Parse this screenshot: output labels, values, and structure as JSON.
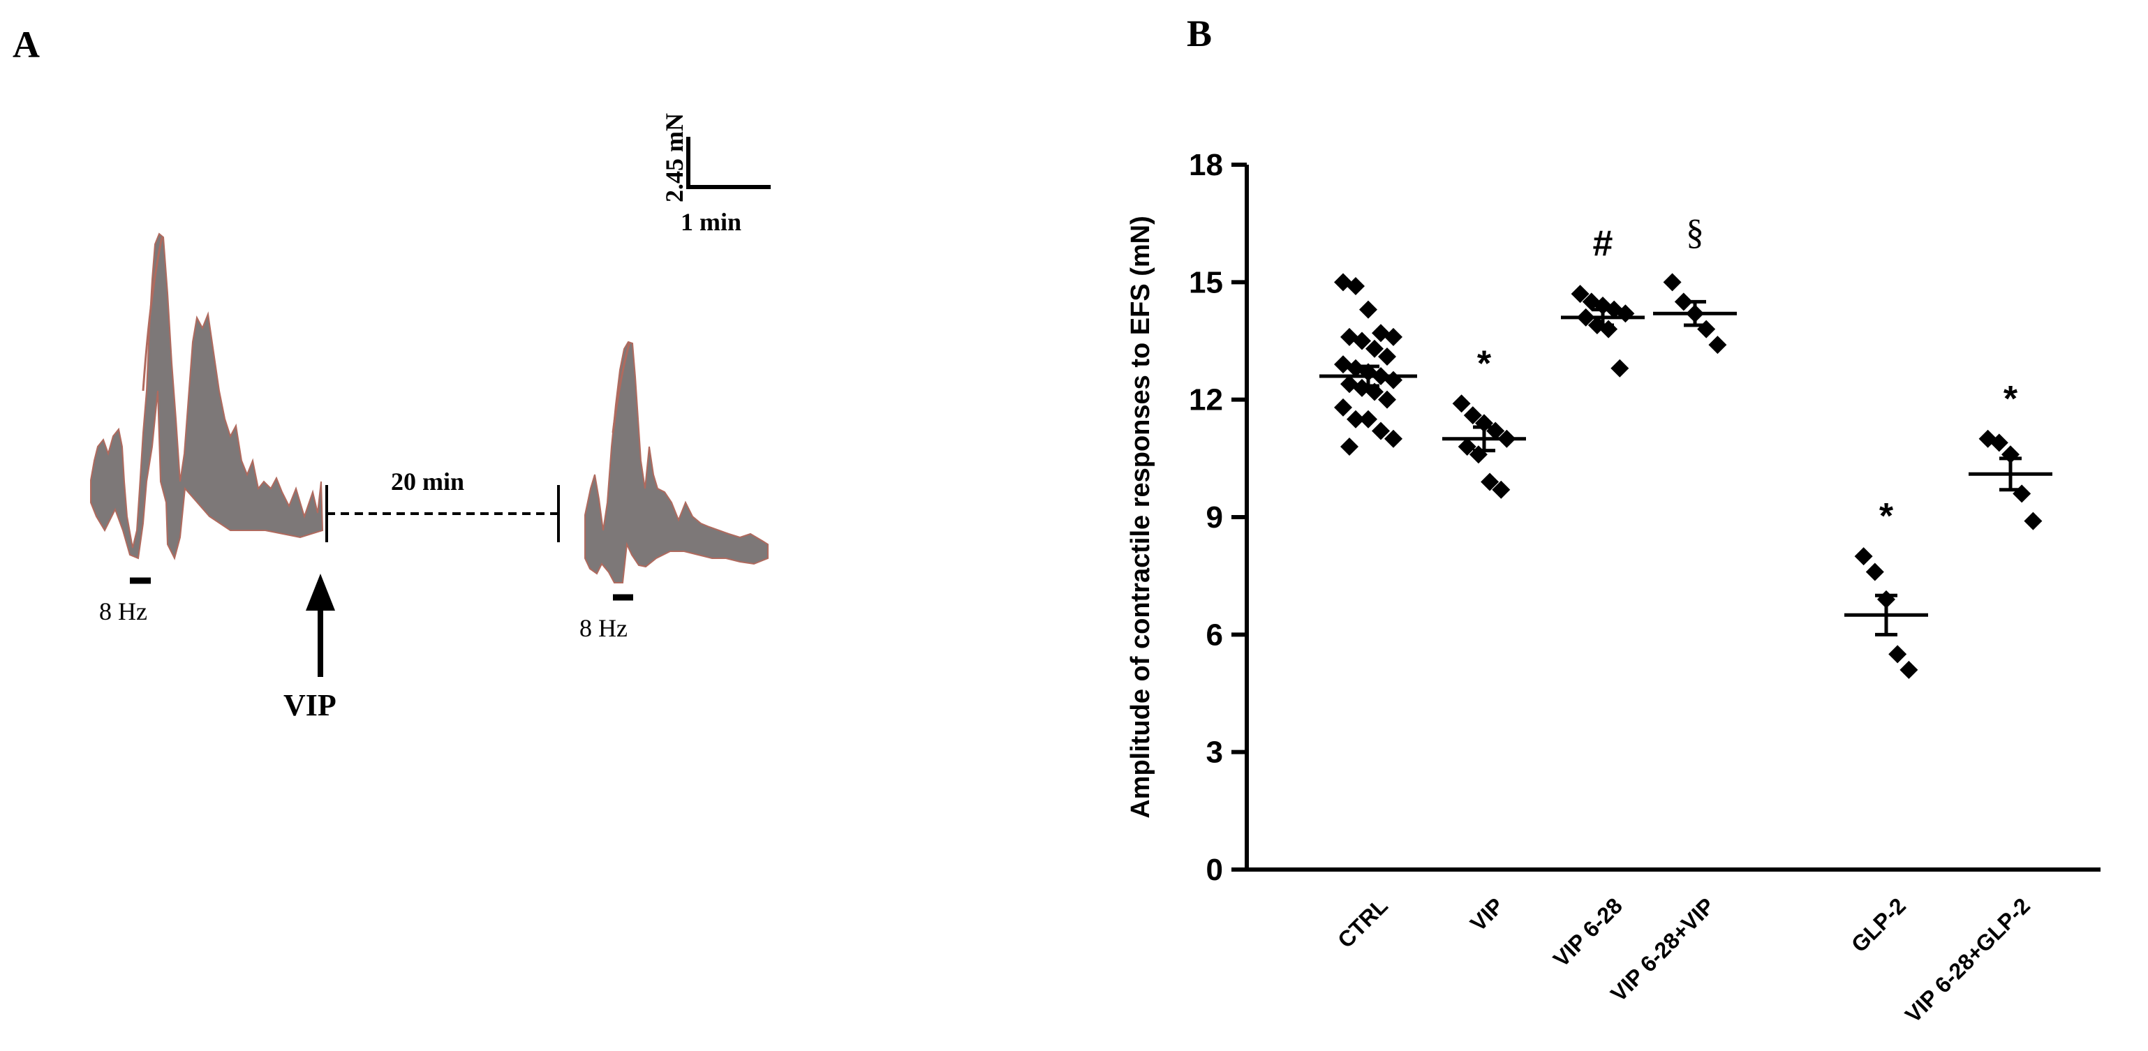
{
  "panel_a": {
    "letter": "A",
    "scale_bar": {
      "vertical_label": "2.45 mN",
      "horizontal_label": "1 min"
    },
    "stimulus_label_1": "8 Hz",
    "stimulus_label_2": "8 Hz",
    "interval_label": "20 min",
    "drug_label": "VIP",
    "colors": {
      "trace": "#7d7878",
      "trace_edge": "#b06a5e"
    }
  },
  "panel_b": {
    "letter": "B"
  },
  "chart_data": {
    "type": "scatter",
    "ylabel": "Amplitude of contractile responses to EFS (mN)",
    "xlabel": "",
    "ylim": [
      0,
      18
    ],
    "yticks": [
      0,
      3,
      6,
      9,
      12,
      15,
      18
    ],
    "ytick_labels": [
      "0",
      "3",
      "6",
      "9",
      "12",
      "15",
      "18"
    ],
    "categories": [
      "CTRL",
      "VIP",
      "VIP 6-28",
      "VIP 6-28+VIP",
      "GLP-2",
      "VIP 6-28+GLP-2"
    ],
    "groups": [
      {
        "name": "CTRL",
        "mean": 12.6,
        "sem": 0.25,
        "significance": "",
        "points": [
          15.0,
          14.9,
          14.3,
          13.7,
          13.6,
          13.6,
          13.5,
          13.3,
          13.1,
          12.9,
          12.8,
          12.7,
          12.6,
          12.5,
          12.4,
          12.3,
          12.2,
          12.0,
          11.8,
          11.5,
          11.5,
          11.2,
          11.0,
          10.8
        ]
      },
      {
        "name": "VIP",
        "mean": 11.0,
        "sem": 0.3,
        "significance": "*",
        "points": [
          11.9,
          11.6,
          11.4,
          11.2,
          11.0,
          10.8,
          10.6,
          9.9,
          9.7
        ]
      },
      {
        "name": "VIP 6-28",
        "mean": 14.1,
        "sem": 0.2,
        "significance": "#",
        "points": [
          14.7,
          14.5,
          14.4,
          14.3,
          14.2,
          14.1,
          13.9,
          13.8,
          12.8
        ]
      },
      {
        "name": "VIP 6-28+VIP",
        "mean": 14.2,
        "sem": 0.3,
        "significance": "§",
        "points": [
          15.0,
          14.5,
          14.2,
          13.8,
          13.4
        ]
      },
      {
        "name": "GLP-2",
        "mean": 6.5,
        "sem": 0.5,
        "significance": "*",
        "points": [
          8.0,
          7.6,
          6.9,
          5.5,
          5.1
        ]
      },
      {
        "name": "VIP 6-28+GLP-2",
        "mean": 10.1,
        "sem": 0.4,
        "significance": "*",
        "points": [
          11.0,
          10.9,
          10.6,
          9.6,
          8.9
        ]
      }
    ],
    "marker": "diamond",
    "marker_color": "#000000",
    "grid": false,
    "legend": "none"
  }
}
